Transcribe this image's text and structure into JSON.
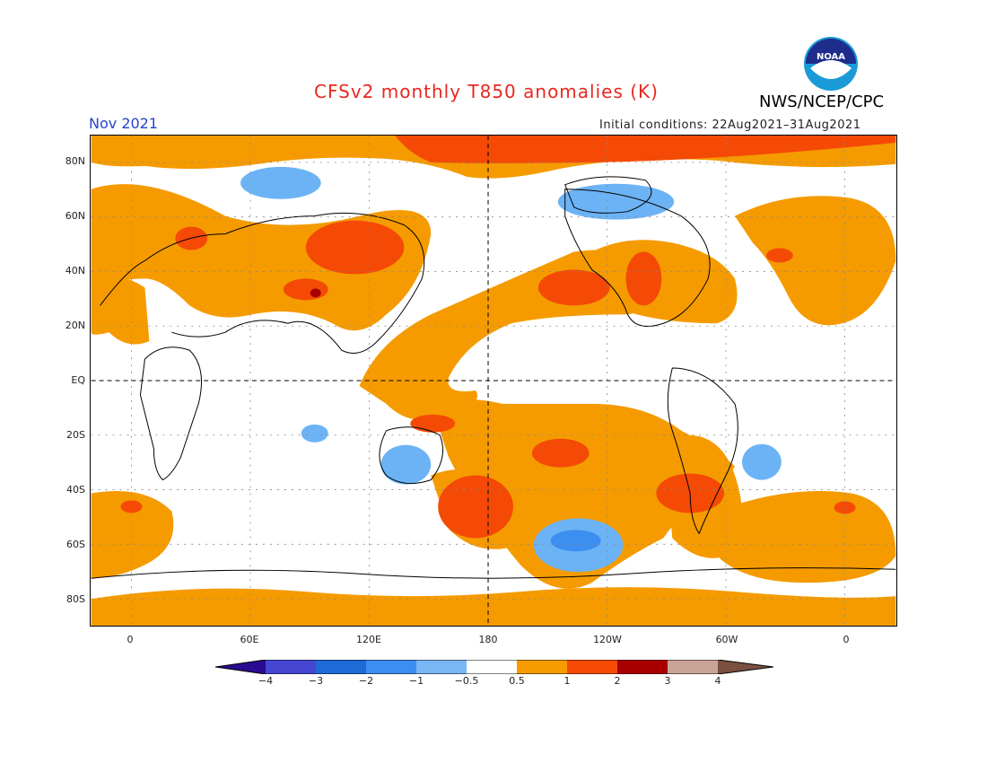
{
  "header": {
    "title": "CFSv2 monthly T850 anomalies (K)",
    "agency": "NWS/NCEP/CPC",
    "month": "Nov 2021",
    "initial_conditions": "Initial conditions: 22Aug2021–31Aug2021",
    "logo_text": "NOAA"
  },
  "map": {
    "lat_labels": [
      "80N",
      "60N",
      "40N",
      "20N",
      "EQ",
      "20S",
      "40S",
      "60S",
      "80S"
    ],
    "lon_labels": [
      "0",
      "60E",
      "120E",
      "180",
      "120W",
      "60W",
      "0"
    ],
    "colors": {
      "orange_0p5_1": "#f59b00",
      "redorange_1_2": "#f44a06",
      "darkred_2_3": "#a80000",
      "lightblue_m1_m0p5": "#6cb3f5",
      "blue_m2_m1": "#3c8ef0"
    }
  },
  "colorbar": {
    "labels": [
      "−4",
      "−3",
      "−2",
      "−1",
      "−0.5",
      "0.5",
      "1",
      "2",
      "3",
      "4"
    ],
    "colors": [
      "#2a0a90",
      "#4646d2",
      "#1f6ad6",
      "#3c8ef0",
      "#78b6f4",
      "#ffffff",
      "#f59b00",
      "#f44a06",
      "#a80000",
      "#c8a596",
      "#7a5040"
    ]
  }
}
